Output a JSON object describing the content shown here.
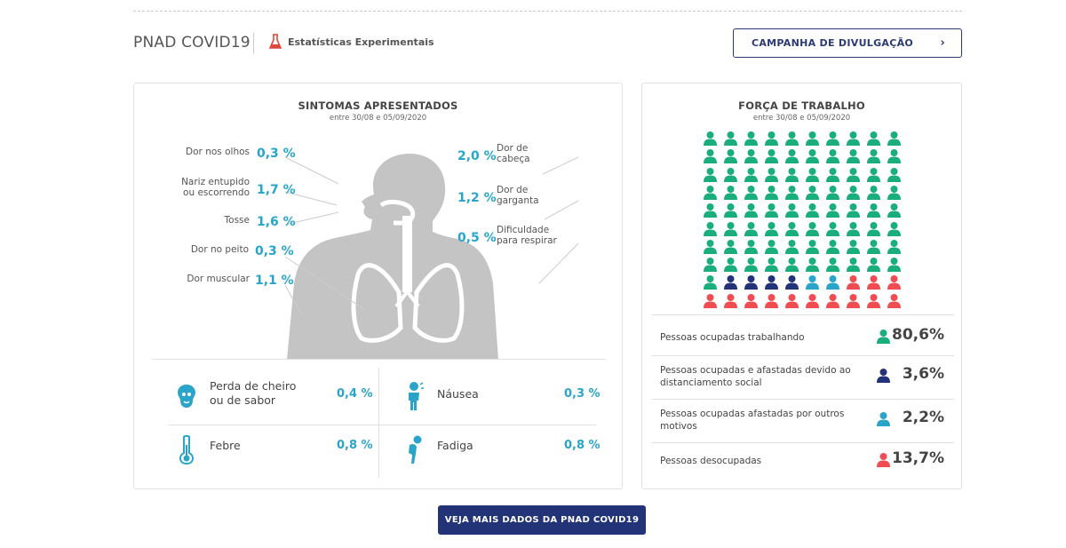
{
  "header": {
    "brand": "PNAD COVID19",
    "experimental_label": "Estatísticas Experimentais",
    "campaign_button": "CAMPANHA DE DIVULGAÇÃO",
    "campaign_chevron": "›"
  },
  "symptoms": {
    "title": "SINTOMAS APRESENTADOS",
    "subtitle": "entre 30/08 e 05/09/2020",
    "left": [
      {
        "label": "Dor nos olhos",
        "value": "0,3 %"
      },
      {
        "label": "Nariz entupido\nou escorrendo",
        "value": "1,7 %"
      },
      {
        "label": "Tosse",
        "value": "1,6 %"
      },
      {
        "label": "Dor no peito",
        "value": "0,3 %"
      },
      {
        "label": "Dor muscular",
        "value": "1,1 %"
      }
    ],
    "right": [
      {
        "label": "Dor de\ncabeça",
        "value": "2,0 %"
      },
      {
        "label": "Dor de\ngarganta",
        "value": "1,2 %"
      },
      {
        "label": "Dificuldade\npara respirar",
        "value": "0,5 %"
      }
    ],
    "extras": [
      {
        "label": "Perda de cheiro\nou de sabor",
        "value": "0,4 %",
        "icon": "nose-icon"
      },
      {
        "label": "Náusea",
        "value": "0,3 %",
        "icon": "nausea-icon"
      },
      {
        "label": "Febre",
        "value": "0,8 %",
        "icon": "thermometer-icon"
      },
      {
        "label": "Fadiga",
        "value": "0,8 %",
        "icon": "fatigue-icon"
      }
    ],
    "accent_color": "#2aa5c9",
    "figure_color": "#c4c4c4"
  },
  "workforce": {
    "title": "FORÇA DE TRABALHO",
    "subtitle": "entre 30/08 e 05/09/2020",
    "grid_total": 100,
    "grid_columns": 10,
    "legend": [
      {
        "label": "Pessoas ocupadas trabalhando",
        "value": "80,6%",
        "count": 81,
        "color": "#19ae7b"
      },
      {
        "label": "Pessoas ocupadas e afastadas devido ao\ndistanciamento social",
        "value": "3,6%",
        "count": 4,
        "color": "#22337a"
      },
      {
        "label": "Pessoas ocupadas afastadas por outros\nmotivos",
        "value": "2,2%",
        "count": 2,
        "color": "#2aa5c9"
      },
      {
        "label": "Pessoas desocupadas",
        "value": "13,7%",
        "count": 13,
        "color": "#ef4d52"
      }
    ]
  },
  "footer": {
    "more_button": "VEJA MAIS DADOS DA PNAD COVID19"
  }
}
